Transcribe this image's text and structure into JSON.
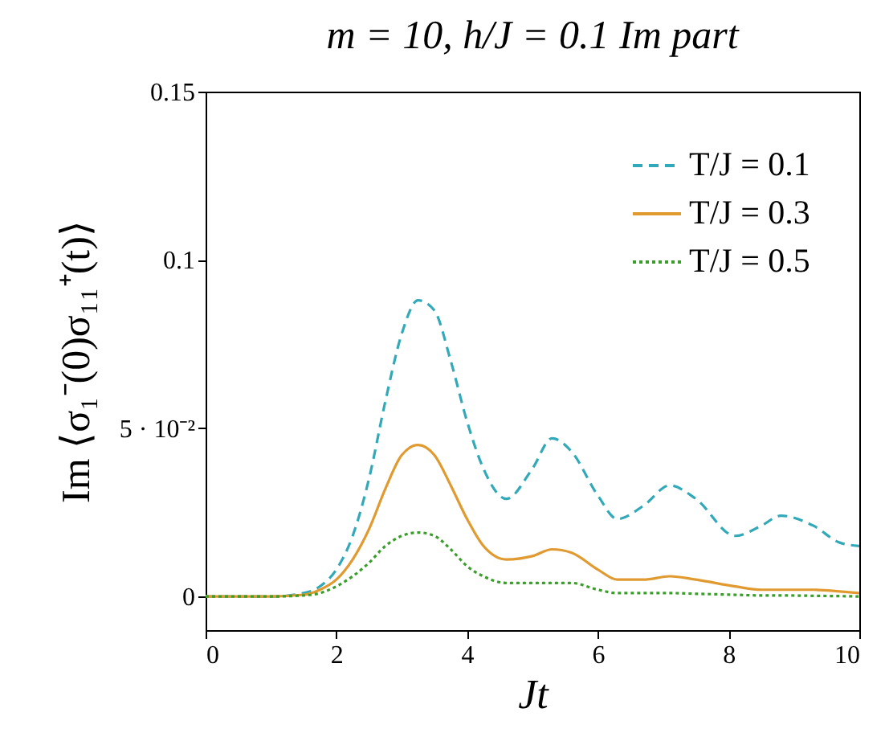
{
  "chart_data": {
    "type": "line",
    "title": "m = 10, h/J = 0.1 Im part",
    "xlabel": "Jt",
    "ylabel": "Im ⟨σ₁⁻(0)σ₁₁⁺(t)⟩",
    "x": [
      0,
      1,
      1.5,
      1.75,
      2,
      2.25,
      2.5,
      2.75,
      3,
      3.25,
      3.5,
      3.75,
      4,
      4.25,
      4.6,
      5,
      5.3,
      5.6,
      6,
      6.3,
      6.7,
      7.1,
      7.5,
      8.1,
      8.5,
      8.8,
      9.3,
      9.7,
      10
    ],
    "series": [
      {
        "name": "T/J = 0.1",
        "color": "#31a9b8",
        "line_style": "dashed",
        "values": [
          0,
          0,
          0.001,
          0.003,
          0.008,
          0.018,
          0.035,
          0.058,
          0.078,
          0.088,
          0.085,
          0.07,
          0.052,
          0.038,
          0.029,
          0.038,
          0.047,
          0.043,
          0.03,
          0.023,
          0.027,
          0.033,
          0.029,
          0.018,
          0.021,
          0.024,
          0.021,
          0.016,
          0.015
        ]
      },
      {
        "name": "T/J = 0.3",
        "color": "#e09a30",
        "line_style": "solid",
        "values": [
          0,
          0,
          0.0005,
          0.002,
          0.005,
          0.011,
          0.02,
          0.032,
          0.042,
          0.045,
          0.042,
          0.033,
          0.023,
          0.015,
          0.011,
          0.012,
          0.014,
          0.013,
          0.008,
          0.005,
          0.005,
          0.006,
          0.005,
          0.003,
          0.002,
          0.002,
          0.002,
          0.0015,
          0.001
        ]
      },
      {
        "name": "T/J = 0.5",
        "color": "#3a9e2a",
        "line_style": "dotted",
        "values": [
          0,
          0,
          0.0003,
          0.001,
          0.003,
          0.006,
          0.01,
          0.015,
          0.018,
          0.019,
          0.018,
          0.014,
          0.009,
          0.006,
          0.004,
          0.004,
          0.004,
          0.004,
          0.002,
          0.001,
          0.001,
          0.001,
          0.0008,
          0.0005,
          0.0003,
          0.0003,
          0.0002,
          0.0001,
          0
        ]
      }
    ],
    "xlim": [
      0,
      10
    ],
    "xticks": [
      0,
      2,
      4,
      6,
      8,
      10
    ],
    "ylim": [
      -0.01,
      0.15
    ],
    "yticks": [
      0,
      {
        "value": 0.05,
        "label": "5 · 10⁻²"
      },
      0.1,
      0.15
    ],
    "legend": "top right",
    "grid": false
  }
}
